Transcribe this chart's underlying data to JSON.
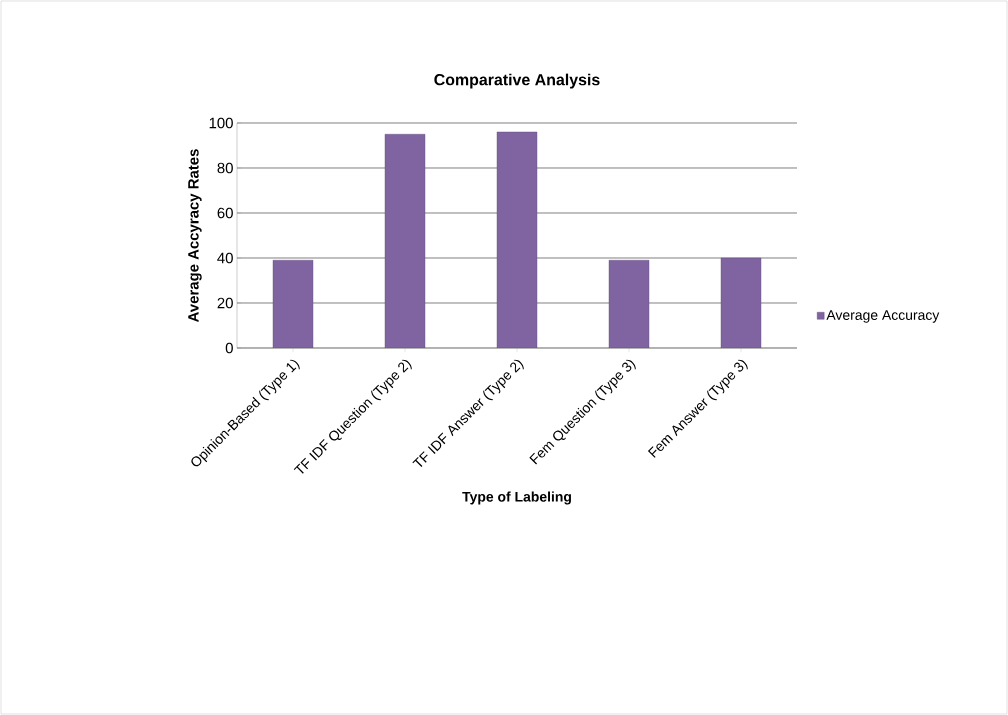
{
  "chart_data": {
    "type": "bar",
    "title": "Comparative Analysis",
    "xlabel": "Type of Labeling",
    "ylabel": "Average Accyracy Rates",
    "categories": [
      "Opinion-Based (Type 1)",
      "TF IDF Question (Type 2)",
      "TF IDF Answer (Type 2)",
      "Fem Question (Type 3)",
      "Fem Answer (Type 3)"
    ],
    "series": [
      {
        "name": "Average Accuracy",
        "color": "#8064a2",
        "values": [
          39,
          95,
          96,
          39,
          40
        ]
      }
    ],
    "ylim": [
      0,
      100
    ],
    "yticks": [
      0,
      20,
      40,
      60,
      80,
      100
    ],
    "grid": "y",
    "legend": "right"
  }
}
